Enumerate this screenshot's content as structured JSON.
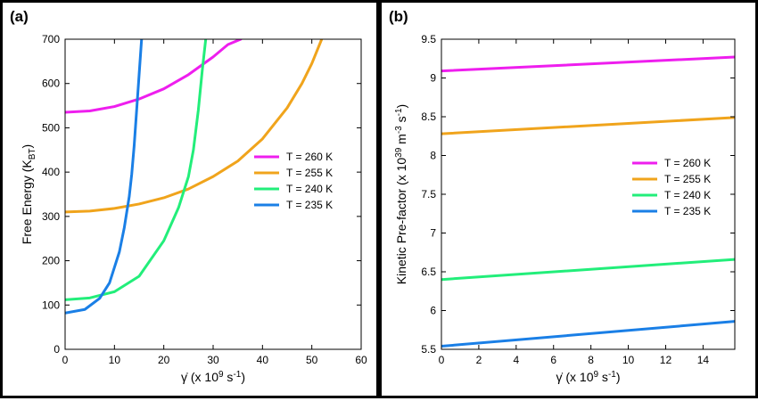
{
  "chart_data": [
    {
      "type": "line",
      "panel_label": "(a)",
      "xlabel": "γ̇ (x 10^9 s^-1)",
      "ylabel": "Free Energy (K_BT)",
      "xlim": [
        0,
        60
      ],
      "ylim": [
        0,
        700
      ],
      "x_ticks": [
        0,
        10,
        20,
        30,
        40,
        50,
        60
      ],
      "y_ticks": [
        0,
        100,
        200,
        300,
        400,
        500,
        600,
        700
      ],
      "grid": false,
      "legend_position": "right",
      "series": [
        {
          "name": "T = 260 K",
          "color": "#ee1eee",
          "x": [
            0,
            5,
            10,
            15,
            20,
            25,
            30,
            33,
            35.6
          ],
          "y": [
            535,
            538,
            548,
            565,
            588,
            620,
            660,
            688,
            700
          ]
        },
        {
          "name": "T = 255 K",
          "color": "#f0a41c",
          "x": [
            0,
            5,
            10,
            15,
            20,
            25,
            30,
            35,
            40,
            45,
            48,
            50,
            52
          ],
          "y": [
            310,
            312,
            318,
            328,
            342,
            362,
            390,
            425,
            475,
            545,
            600,
            645,
            700
          ]
        },
        {
          "name": "T = 240 K",
          "color": "#22ee7a",
          "x": [
            0,
            5,
            10,
            15,
            20,
            23,
            25,
            26,
            27,
            27.8,
            28.5
          ],
          "y": [
            112,
            116,
            130,
            165,
            245,
            320,
            390,
            450,
            540,
            630,
            700
          ]
        },
        {
          "name": "T = 235 K",
          "color": "#1a7fe6",
          "x": [
            0,
            4,
            7,
            9,
            11,
            12,
            13,
            13.5,
            14,
            14.5,
            15,
            15.5
          ],
          "y": [
            82,
            90,
            115,
            150,
            220,
            275,
            345,
            395,
            460,
            540,
            620,
            700
          ]
        }
      ]
    },
    {
      "type": "line",
      "panel_label": "(b)",
      "xlabel": "γ̇ (x 10^9 s^-1)",
      "ylabel": "Kinetic Pre-factor (x 10^39 m^-3 s^-1)",
      "xlim": [
        0,
        15.7
      ],
      "ylim": [
        5.5,
        9.5
      ],
      "x_ticks": [
        0,
        2,
        4,
        6,
        8,
        10,
        12,
        14
      ],
      "y_ticks": [
        5.5,
        6,
        6.5,
        7,
        7.5,
        8,
        8.5,
        9,
        9.5
      ],
      "grid": false,
      "legend_position": "right",
      "series": [
        {
          "name": "T = 260 K",
          "color": "#ee1eee",
          "x": [
            0,
            15.7
          ],
          "y": [
            9.09,
            9.27
          ]
        },
        {
          "name": "T = 255 K",
          "color": "#f0a41c",
          "x": [
            0,
            15.7
          ],
          "y": [
            8.28,
            8.49
          ]
        },
        {
          "name": "T = 240 K",
          "color": "#22ee7a",
          "x": [
            0,
            15.7
          ],
          "y": [
            6.4,
            6.66
          ]
        },
        {
          "name": "T = 235 K",
          "color": "#1a7fe6",
          "x": [
            0,
            15.7
          ],
          "y": [
            5.54,
            5.86
          ]
        }
      ]
    }
  ]
}
